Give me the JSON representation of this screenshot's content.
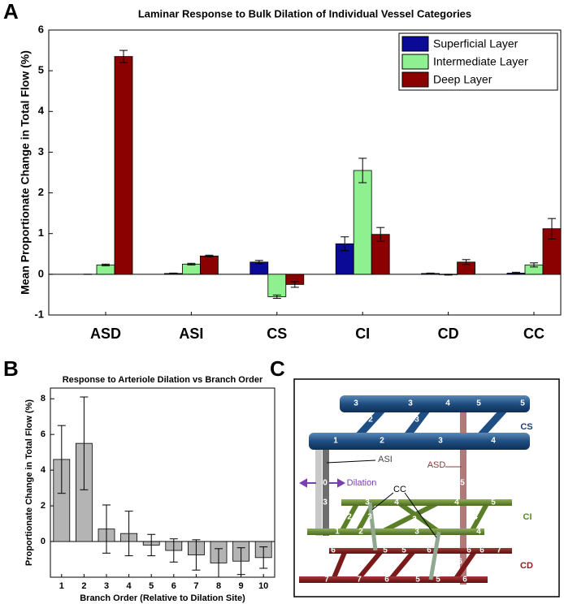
{
  "panel_labels": [
    "A",
    "B",
    "C"
  ],
  "chart_data": [
    {
      "type": "bar",
      "title": "Laminar Response to Bulk Dilation of Individual Vessel Categories",
      "y_label": "Mean Proportionate Change in Total Flow (%)",
      "categories": [
        "ASD",
        "ASI",
        "CS",
        "CI",
        "CD",
        "CC"
      ],
      "series": [
        {
          "name": "Superficial Layer",
          "color": "#0a0a96",
          "values": [
            0,
            0.02,
            0.3,
            0.75,
            0.02,
            0.03
          ],
          "errors": [
            0,
            0.01,
            0.04,
            0.17,
            0.01,
            0.02
          ]
        },
        {
          "name": "Intermediate Layer",
          "color": "#8ef08e",
          "values": [
            0.23,
            0.25,
            -0.55,
            2.55,
            -0.01,
            0.23
          ],
          "errors": [
            0.02,
            0.02,
            0.04,
            0.3,
            0.01,
            0.05
          ]
        },
        {
          "name": "Deep Layer",
          "color": "#8b0000",
          "values": [
            5.35,
            0.45,
            -0.25,
            0.98,
            0.3,
            1.12
          ],
          "errors": [
            0.15,
            0.02,
            0.07,
            0.17,
            0.06,
            0.25
          ]
        }
      ],
      "ylim": [
        -1,
        6
      ],
      "yticks": [
        -1,
        0,
        1,
        2,
        3,
        4,
        5,
        6
      ],
      "legend": "upper right",
      "grid": false
    },
    {
      "type": "bar",
      "title": "Response to Arteriole Dilation vs Branch Order",
      "x_label": "Branch Order (Relative to Dilation Site)",
      "y_label": "Proportionate Change in Total Flow (%)",
      "categories": [
        "1",
        "2",
        "3",
        "4",
        "5",
        "6",
        "7",
        "8",
        "9",
        "10"
      ],
      "values": [
        4.6,
        5.5,
        0.7,
        0.45,
        -0.2,
        -0.5,
        -0.75,
        -1.2,
        -1.1,
        -0.9
      ],
      "errors": [
        1.9,
        2.6,
        1.35,
        1.25,
        0.6,
        0.65,
        0.85,
        0.8,
        0.75,
        0.6
      ],
      "color": "#b4b4b4",
      "ylim": [
        -2,
        8.6
      ],
      "yticks": [
        0,
        2,
        4,
        6,
        8
      ],
      "grid": false
    }
  ],
  "diagram": {
    "names": {
      "cs": "CS",
      "asi": "ASI",
      "asd": "ASD",
      "dilation": "Dilation",
      "cc": "CC",
      "ci": "CI",
      "cd": "CD"
    },
    "numbers": [
      "3",
      "3",
      "4",
      "5",
      "5",
      "2",
      "3",
      "4",
      "1",
      "2",
      "3",
      "4",
      "0",
      "5",
      "3",
      "3",
      "4",
      "4",
      "5",
      "2",
      "3",
      "3",
      "4",
      "1",
      "2",
      "3",
      "4",
      "6",
      "5",
      "5",
      "6",
      "6",
      "6",
      "7",
      "6",
      "6",
      "6",
      "7",
      "7",
      "6",
      "5",
      "5",
      "6"
    ]
  }
}
